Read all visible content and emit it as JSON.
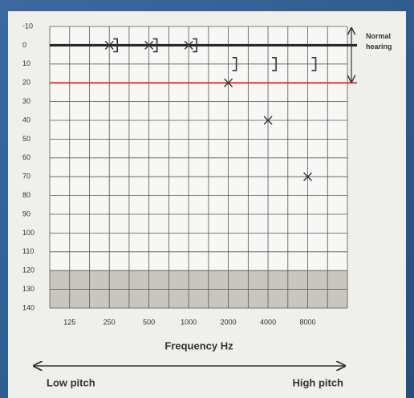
{
  "chart_data": {
    "type": "audiogram",
    "categories": [
      "125",
      "250",
      "500",
      "1000",
      "2000",
      "4000",
      "8000"
    ],
    "series": [
      {
        "marker": "x",
        "color": "#333333",
        "values": [
          null,
          0,
          0,
          0,
          20,
          40,
          70
        ]
      },
      {
        "marker": "bracket",
        "color": "#333333",
        "values": [
          null,
          0,
          0,
          0,
          10,
          10,
          10
        ]
      }
    ],
    "ylim": [
      -10,
      140
    ],
    "yticks": [
      -10,
      0,
      10,
      20,
      30,
      40,
      50,
      60,
      70,
      80,
      90,
      100,
      110,
      120,
      130,
      140
    ],
    "y_inverted": true,
    "grid": true,
    "reference_lines": [
      {
        "value": 0,
        "color": "#222222"
      },
      {
        "value": 20,
        "color": "#e03a3a"
      }
    ],
    "shaded_range": [
      120,
      140
    ],
    "shade_color": "#c9c6bf",
    "normal_label": "Normal hearing",
    "xlabel": "Frequency Hz",
    "low_label": "Low pitch",
    "high_label": "High pitch"
  }
}
